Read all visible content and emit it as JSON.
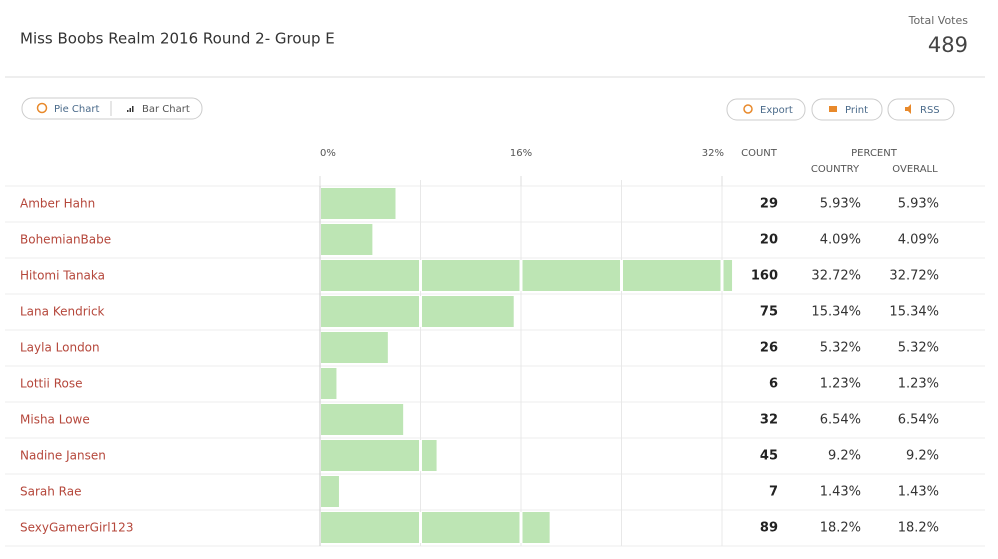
{
  "header": {
    "title": "Miss Boobs Realm 2016 Round 2- Group E",
    "total_label": "Total Votes",
    "total": 489
  },
  "toolbar": {
    "views": [
      "Pie Chart",
      "Bar Chart"
    ],
    "actions": [
      "Export",
      "Print",
      "RSS"
    ]
  },
  "table": {
    "columns": {
      "count": "COUNT",
      "percent": "PERCENT",
      "country": "COUNTRY",
      "overall": "OVERALL"
    },
    "xlim": [
      0,
      32
    ],
    "ticks": [
      {
        "value": 0,
        "label": "0%"
      },
      {
        "value": 16,
        "label": "16%"
      },
      {
        "value": 32,
        "label": "32%"
      }
    ],
    "grid_lines": [
      8,
      16,
      24,
      32
    ],
    "bar_color": "#bde5b4",
    "rows": [
      {
        "name": "Amber Hahn",
        "count": 29,
        "country": {
          "value": 5.93,
          "label": "5.93%"
        },
        "overall": {
          "value": 5.93,
          "label": "5.93%"
        }
      },
      {
        "name": "BohemianBabe",
        "count": 20,
        "country": {
          "value": 4.09,
          "label": "4.09%"
        },
        "overall": {
          "value": 4.09,
          "label": "4.09%"
        }
      },
      {
        "name": "Hitomi Tanaka",
        "count": 160,
        "country": {
          "value": 32.72,
          "label": "32.72%"
        },
        "overall": {
          "value": 32.72,
          "label": "32.72%"
        }
      },
      {
        "name": "Lana Kendrick",
        "count": 75,
        "country": {
          "value": 15.34,
          "label": "15.34%"
        },
        "overall": {
          "value": 15.34,
          "label": "15.34%"
        }
      },
      {
        "name": "Layla London",
        "count": 26,
        "country": {
          "value": 5.32,
          "label": "5.32%"
        },
        "overall": {
          "value": 5.32,
          "label": "5.32%"
        }
      },
      {
        "name": "Lottii Rose",
        "count": 6,
        "country": {
          "value": 1.23,
          "label": "1.23%"
        },
        "overall": {
          "value": 1.23,
          "label": "1.23%"
        }
      },
      {
        "name": "Misha Lowe",
        "count": 32,
        "country": {
          "value": 6.54,
          "label": "6.54%"
        },
        "overall": {
          "value": 6.54,
          "label": "6.54%"
        }
      },
      {
        "name": "Nadine Jansen",
        "count": 45,
        "country": {
          "value": 9.2,
          "label": "9.2%"
        },
        "overall": {
          "value": 9.2,
          "label": "9.2%"
        }
      },
      {
        "name": "Sarah Rae",
        "count": 7,
        "country": {
          "value": 1.43,
          "label": "1.43%"
        },
        "overall": {
          "value": 1.43,
          "label": "1.43%"
        }
      },
      {
        "name": "SexyGamerGirl123",
        "count": 89,
        "country": {
          "value": 18.2,
          "label": "18.2%"
        },
        "overall": {
          "value": 18.2,
          "label": "18.2%"
        }
      }
    ]
  }
}
